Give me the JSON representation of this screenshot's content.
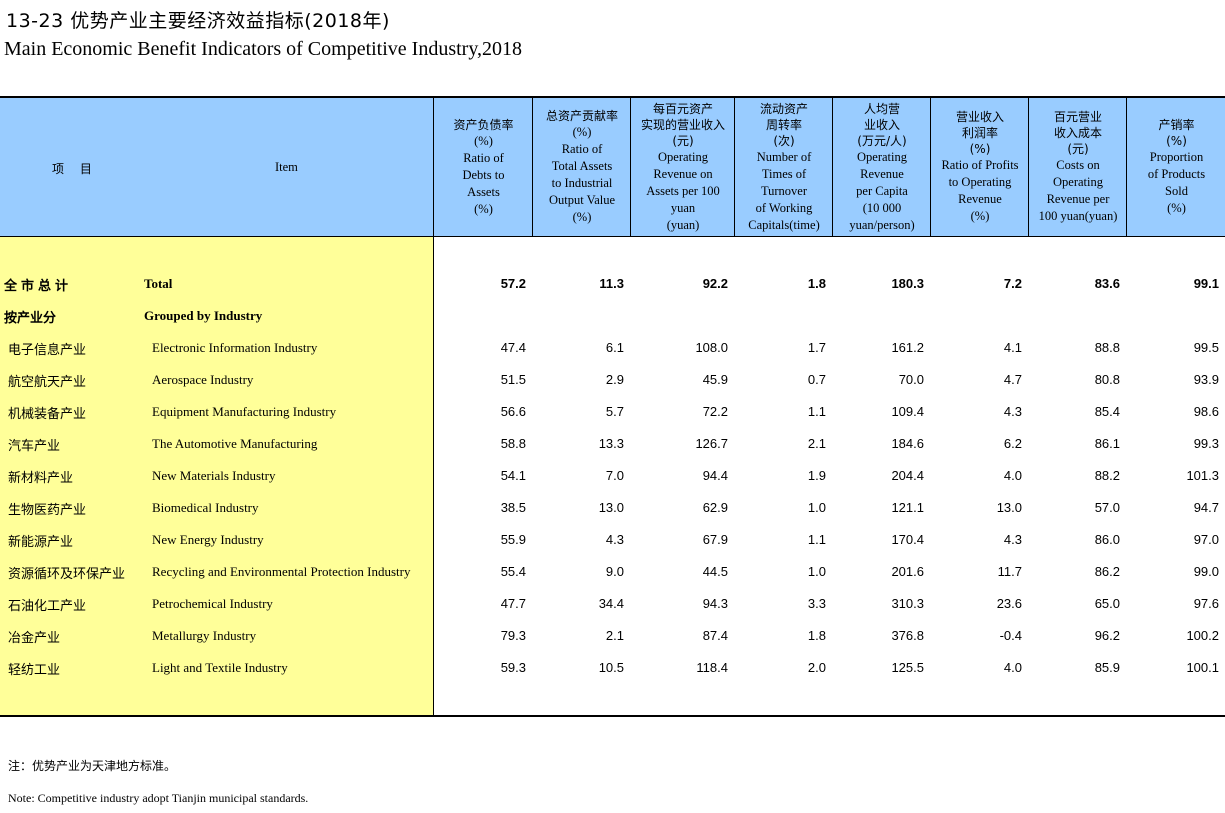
{
  "title": {
    "cn": "13-23  优势产业主要经济效益指标(2018年)",
    "en": "Main Economic Benefit Indicators of Competitive Industry,2018"
  },
  "header": {
    "item_cn": "项 目",
    "item_en": "Item",
    "columns": [
      {
        "cn": [
          "资产负债率"
        ],
        "en": [
          "(%)",
          "Ratio of",
          "Debts to",
          "Assets",
          "(%)"
        ]
      },
      {
        "cn": [
          "总资产贡献率"
        ],
        "en": [
          "(%)",
          "Ratio of",
          "Total Assets",
          "to Industrial",
          "Output Value",
          "(%)"
        ]
      },
      {
        "cn": [
          "每百元资产",
          "实现的营业收入",
          "(元)"
        ],
        "en": [
          "Operating",
          "Revenue on",
          "Assets per 100",
          "yuan",
          "(yuan)"
        ]
      },
      {
        "cn": [
          "流动资产",
          "周转率",
          "(次)"
        ],
        "en": [
          "Number of",
          "Times of",
          "Turnover",
          "of Working",
          "Capitals(time)"
        ]
      },
      {
        "cn": [
          "人均营",
          "业收入",
          "(万元/人)"
        ],
        "en": [
          "Operating",
          "Revenue",
          "per Capita",
          "(10 000",
          "yuan/person)"
        ]
      },
      {
        "cn": [
          "营业收入",
          "利润率",
          "(%)"
        ],
        "en": [
          "Ratio of Profits",
          "to Operating",
          "Revenue",
          "(%)"
        ]
      },
      {
        "cn": [
          "百元营业",
          "收入成本",
          "(元)"
        ],
        "en": [
          "Costs on",
          "Operating",
          "Revenue per",
          "100 yuan(yuan)"
        ]
      },
      {
        "cn": [
          "产销率",
          "(%)"
        ],
        "en": [
          "Proportion",
          "of Products",
          "Sold",
          "(%)"
        ]
      }
    ]
  },
  "rows": [
    {
      "cn": "全市总计",
      "en": "Total",
      "bold": true,
      "indent": false,
      "values": [
        "57.2",
        "11.3",
        "92.2",
        "1.8",
        "180.3",
        "7.2",
        "83.6",
        "99.1"
      ]
    },
    {
      "cn": "按产业分",
      "en": "Grouped by Industry",
      "bold": true,
      "indent": false,
      "values": []
    },
    {
      "cn": "电子信息产业",
      "en": "Electronic Information Industry",
      "bold": false,
      "indent": true,
      "values": [
        "47.4",
        "6.1",
        "108.0",
        "1.7",
        "161.2",
        "4.1",
        "88.8",
        "99.5"
      ]
    },
    {
      "cn": "航空航天产业",
      "en": "Aerospace Industry",
      "bold": false,
      "indent": true,
      "values": [
        "51.5",
        "2.9",
        "45.9",
        "0.7",
        "70.0",
        "4.7",
        "80.8",
        "93.9"
      ]
    },
    {
      "cn": "机械装备产业",
      "en": "Equipment Manufacturing Industry",
      "bold": false,
      "indent": true,
      "values": [
        "56.6",
        "5.7",
        "72.2",
        "1.1",
        "109.4",
        "4.3",
        "85.4",
        "98.6"
      ]
    },
    {
      "cn": "汽车产业",
      "en": "The Automotive Manufacturing",
      "bold": false,
      "indent": true,
      "values": [
        "58.8",
        "13.3",
        "126.7",
        "2.1",
        "184.6",
        "6.2",
        "86.1",
        "99.3"
      ]
    },
    {
      "cn": "新材料产业",
      "en": "New Materials Industry",
      "bold": false,
      "indent": true,
      "values": [
        "54.1",
        "7.0",
        "94.4",
        "1.9",
        "204.4",
        "4.0",
        "88.2",
        "101.3"
      ]
    },
    {
      "cn": "生物医药产业",
      "en": "Biomedical Industry",
      "bold": false,
      "indent": true,
      "values": [
        "38.5",
        "13.0",
        "62.9",
        "1.0",
        "121.1",
        "13.0",
        "57.0",
        "94.7"
      ]
    },
    {
      "cn": "新能源产业",
      "en": "New Energy Industry",
      "bold": false,
      "indent": true,
      "values": [
        "55.9",
        "4.3",
        "67.9",
        "1.1",
        "170.4",
        "4.3",
        "86.0",
        "97.0"
      ]
    },
    {
      "cn": "资源循环及环保产业",
      "en": "Recycling and Environmental Protection Industry",
      "bold": false,
      "indent": true,
      "values": [
        "55.4",
        "9.0",
        "44.5",
        "1.0",
        "201.6",
        "11.7",
        "86.2",
        "99.0"
      ]
    },
    {
      "cn": "石油化工产业",
      "en": "Petrochemical Industry",
      "bold": false,
      "indent": true,
      "values": [
        "47.7",
        "34.4",
        "94.3",
        "3.3",
        "310.3",
        "23.6",
        "65.0",
        "97.6"
      ]
    },
    {
      "cn": "冶金产业",
      "en": "Metallurgy Industry",
      "bold": false,
      "indent": true,
      "values": [
        "79.3",
        "2.1",
        "87.4",
        "1.8",
        "376.8",
        "-0.4",
        "96.2",
        "100.2"
      ]
    },
    {
      "cn": "轻纺工业",
      "en": "Light and Textile Industry",
      "bold": false,
      "indent": true,
      "values": [
        "59.3",
        "10.5",
        "118.4",
        "2.0",
        "125.5",
        "4.0",
        "85.9",
        "100.1"
      ]
    }
  ],
  "notes": {
    "cn": "注：优势产业为天津地方标准。",
    "en": "Note: Competitive industry adopt Tianjin municipal standards."
  },
  "colors": {
    "header_bg": "#99ccff",
    "stub_bg": "#ffff99"
  }
}
